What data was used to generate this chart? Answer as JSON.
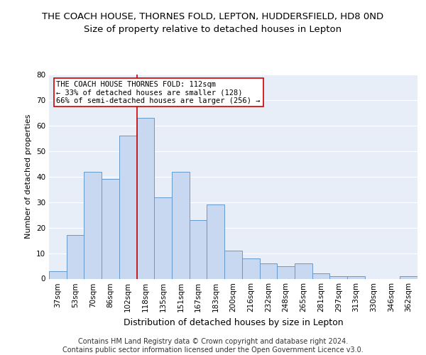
{
  "title1": "THE COACH HOUSE, THORNES FOLD, LEPTON, HUDDERSFIELD, HD8 0ND",
  "title2": "Size of property relative to detached houses in Lepton",
  "xlabel": "Distribution of detached houses by size in Lepton",
  "ylabel": "Number of detached properties",
  "categories": [
    "37sqm",
    "53sqm",
    "70sqm",
    "86sqm",
    "102sqm",
    "118sqm",
    "135sqm",
    "151sqm",
    "167sqm",
    "183sqm",
    "200sqm",
    "216sqm",
    "232sqm",
    "248sqm",
    "265sqm",
    "281sqm",
    "297sqm",
    "313sqm",
    "330sqm",
    "346sqm",
    "362sqm"
  ],
  "values": [
    3,
    17,
    42,
    39,
    56,
    63,
    32,
    42,
    23,
    29,
    11,
    8,
    6,
    5,
    6,
    2,
    1,
    1,
    0,
    0,
    1
  ],
  "bar_color": "#c8d8f0",
  "bar_edge_color": "#6699cc",
  "vline_x": 4.5,
  "vline_color": "#cc0000",
  "annotation_title": "THE COACH HOUSE THORNES FOLD: 112sqm",
  "annotation_line1": "← 33% of detached houses are smaller (128)",
  "annotation_line2": "66% of semi-detached houses are larger (256) →",
  "annotation_box_facecolor": "#ffffff",
  "annotation_box_edgecolor": "#cc0000",
  "ylim": [
    0,
    80
  ],
  "yticks": [
    0,
    10,
    20,
    30,
    40,
    50,
    60,
    70,
    80
  ],
  "plot_bg_color": "#e8eef8",
  "fig_bg_color": "#ffffff",
  "grid_color": "#ffffff",
  "title1_fontsize": 9.5,
  "title2_fontsize": 9.5,
  "xlabel_fontsize": 9,
  "ylabel_fontsize": 8,
  "tick_fontsize": 7.5,
  "annot_fontsize": 7.5,
  "footer_fontsize": 7,
  "footer1": "Contains HM Land Registry data © Crown copyright and database right 2024.",
  "footer2": "Contains public sector information licensed under the Open Government Licence v3.0."
}
